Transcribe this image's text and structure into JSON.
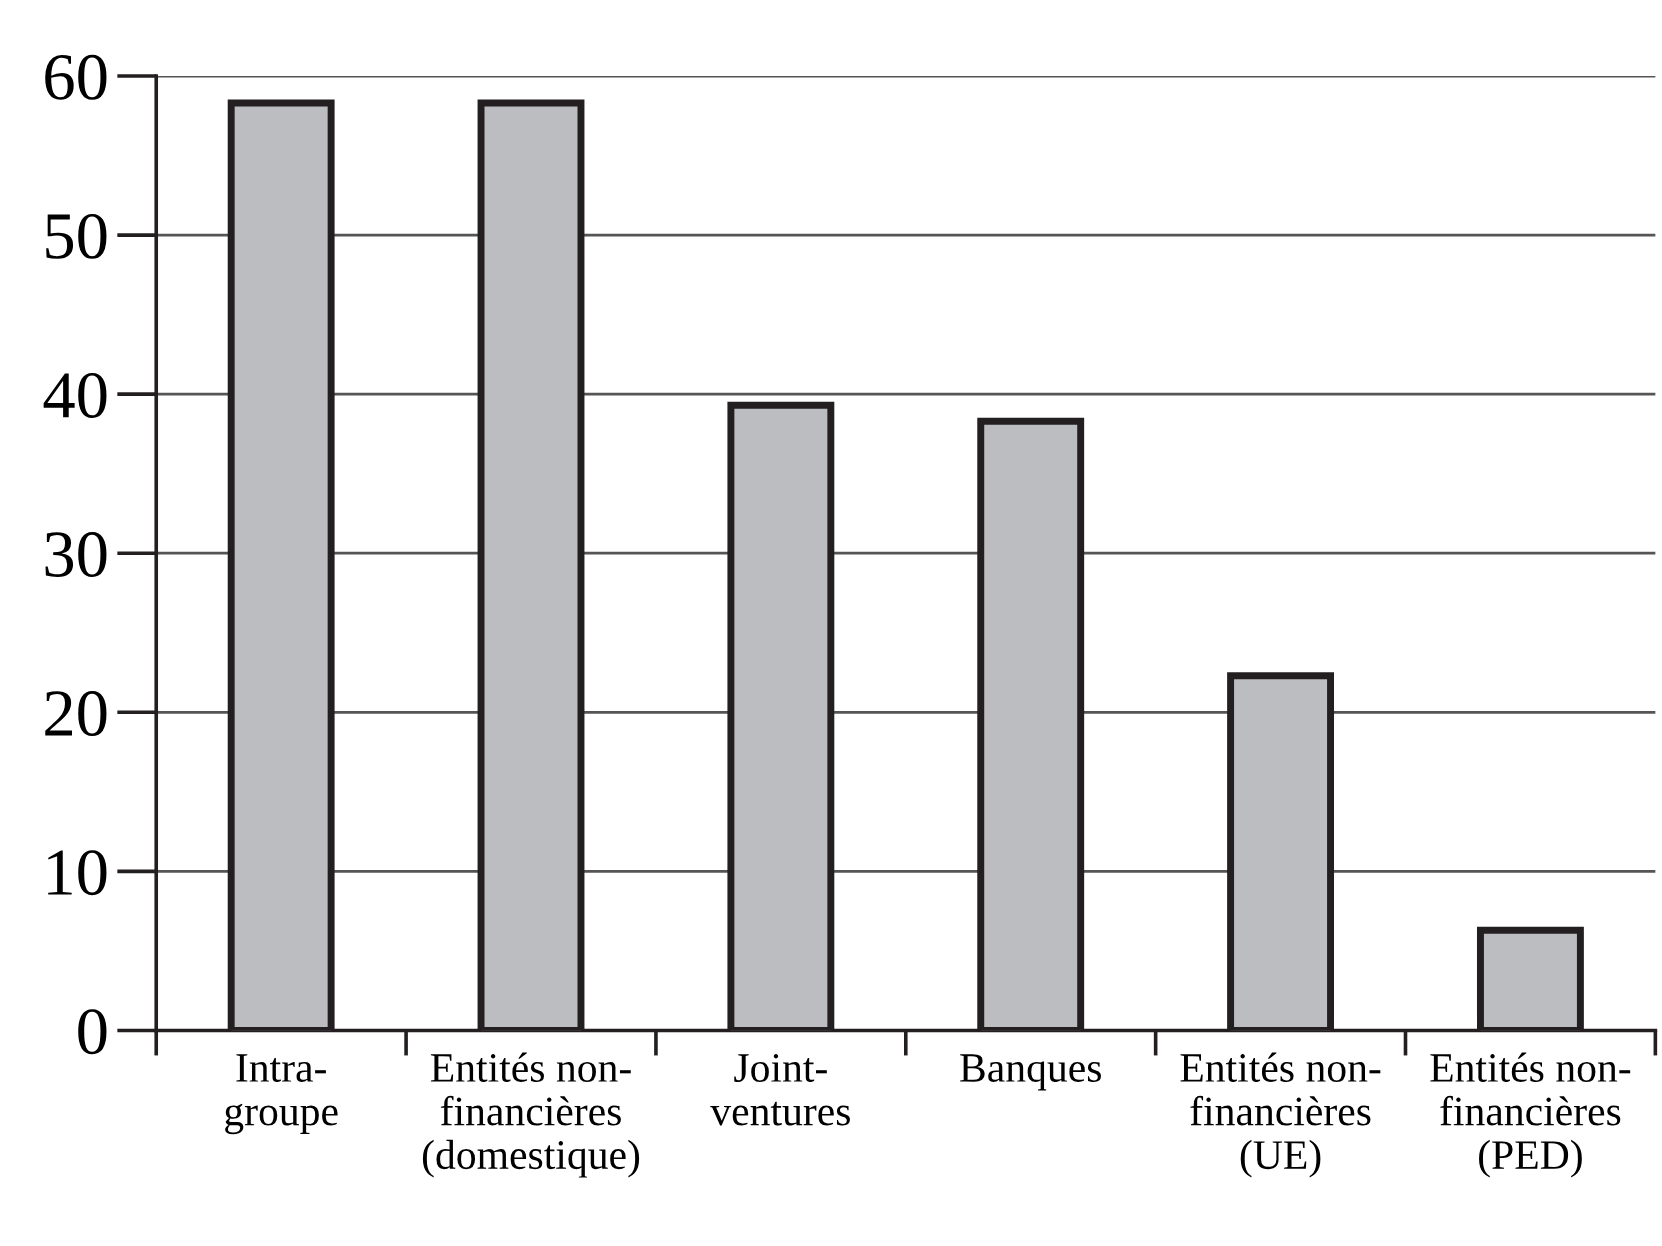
{
  "chart_data": {
    "type": "bar",
    "categories": [
      "Intra-\ngroupe",
      "Entités non-\nfinancières\n(domestique)",
      "Joint-\nventures",
      "Banques",
      "Entités non-\nfinancières\n(UE)",
      "Entités non-\nfinancières\n(PED)"
    ],
    "values": [
      58.3,
      58.3,
      39.3,
      38.3,
      22.3,
      6.3
    ],
    "color": "#bcbdc1",
    "ylim": [
      0,
      60
    ],
    "yticks": [
      0,
      10,
      20,
      30,
      40,
      50,
      60
    ],
    "grid": "y"
  }
}
